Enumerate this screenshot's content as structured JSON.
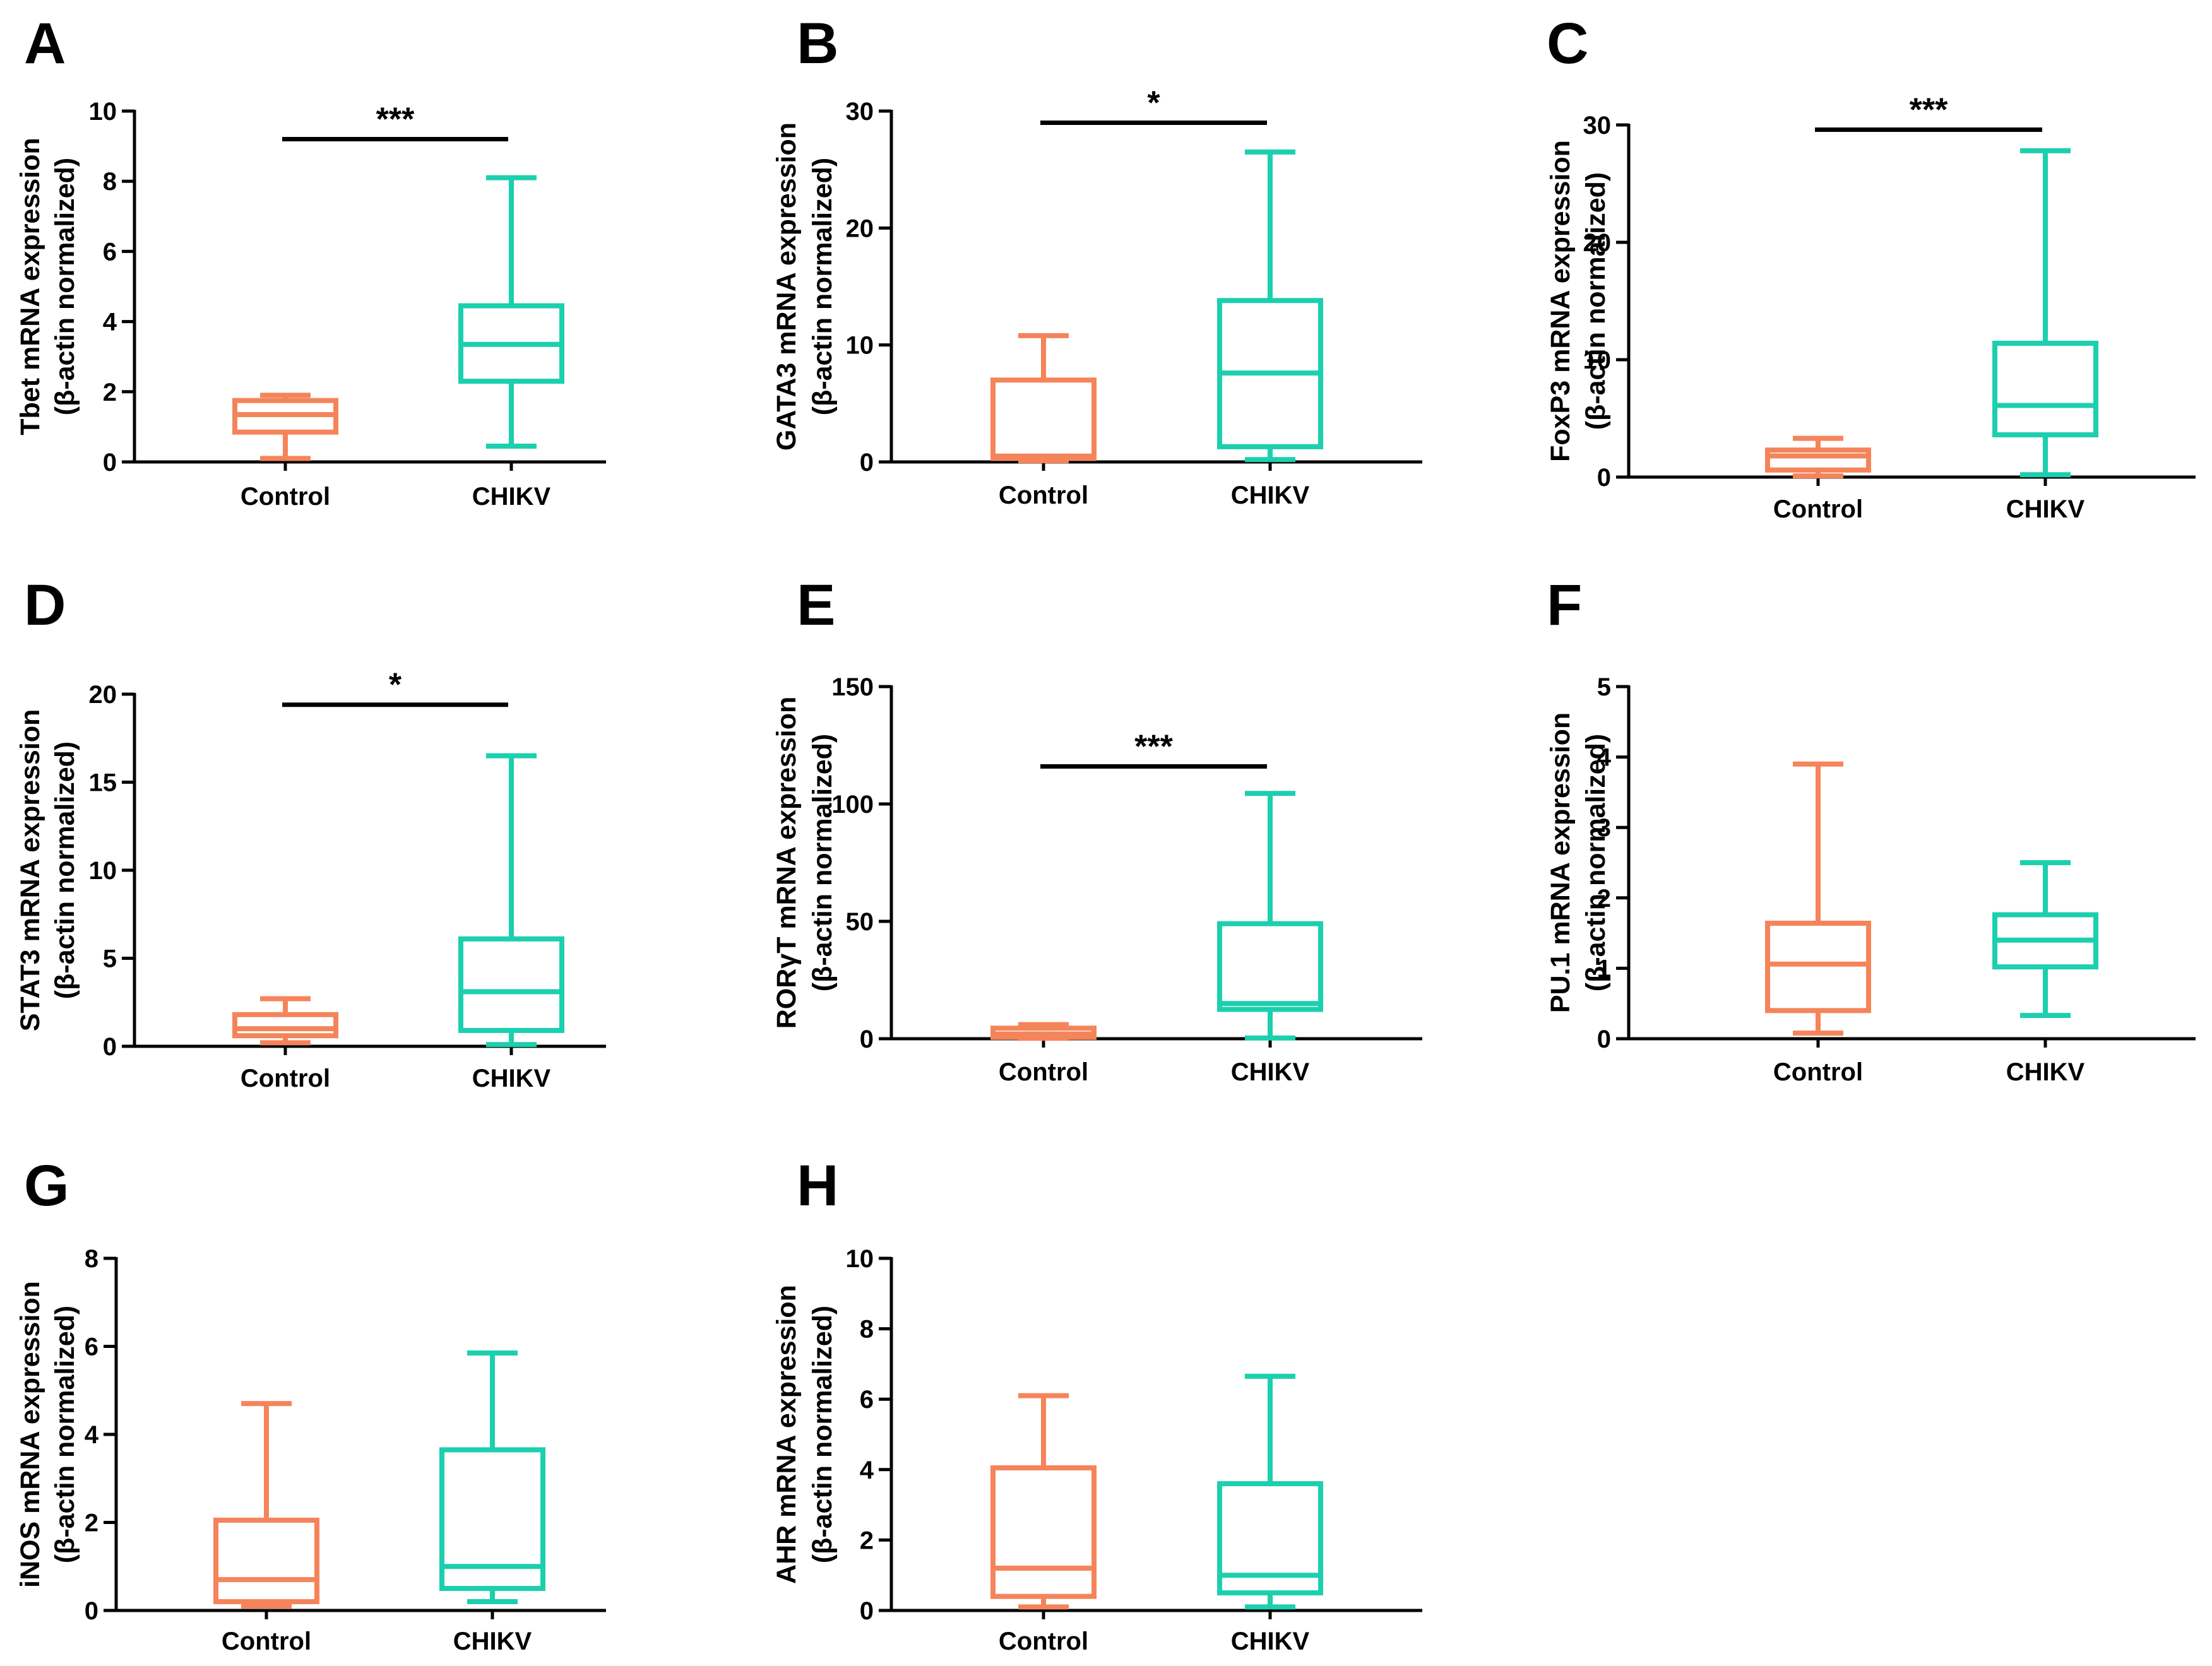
{
  "colors": {
    "control": "#F5845A",
    "chikv": "#1CCFAE",
    "axis": "#000000"
  },
  "chart_data": [
    {
      "type": "box",
      "panel": "A",
      "ylabel": "Tbet mRNA expression",
      "ylabel2": "(β-actin normalized)",
      "ylim": [
        0,
        10
      ],
      "yticks": [
        "0",
        "2",
        "4",
        "6",
        "8",
        "10"
      ],
      "ytick_values": [
        0,
        2,
        4,
        6,
        8,
        10
      ],
      "categories": [
        "Control",
        "CHIKV"
      ],
      "series": [
        {
          "name": "Control",
          "min": 0.1,
          "q1": 0.85,
          "median": 1.35,
          "q3": 1.75,
          "max": 1.9
        },
        {
          "name": "CHIKV",
          "min": 0.45,
          "q1": 2.3,
          "median": 3.35,
          "q3": 4.45,
          "max": 8.1
        }
      ],
      "significance": {
        "label": "***",
        "y": 9.2
      }
    },
    {
      "type": "box",
      "panel": "B",
      "ylabel": "GATA3 mRNA expression",
      "ylabel2": "(β-actin normalized)",
      "ylim": [
        0,
        30
      ],
      "yticks": [
        "0",
        "10",
        "20",
        "30"
      ],
      "ytick_values": [
        0,
        10,
        20,
        30
      ],
      "categories": [
        "Control",
        "CHIKV"
      ],
      "series": [
        {
          "name": "Control",
          "min": 0.1,
          "q1": 0.3,
          "median": 0.5,
          "q3": 7.0,
          "max": 10.8
        },
        {
          "name": "CHIKV",
          "min": 0.2,
          "q1": 1.3,
          "median": 7.6,
          "q3": 13.8,
          "max": 26.5
        }
      ],
      "significance": {
        "label": "*",
        "y": 29.0
      }
    },
    {
      "type": "box",
      "panel": "C",
      "ylabel": "FoxP3 mRNA expression",
      "ylabel2": "(β-actin normalized)",
      "ylim": [
        0,
        30
      ],
      "yticks": [
        "0",
        "10",
        "20",
        "30"
      ],
      "ytick_values": [
        0,
        10,
        20,
        30
      ],
      "categories": [
        "Control",
        "CHIKV"
      ],
      "series": [
        {
          "name": "Control",
          "min": 0.1,
          "q1": 0.6,
          "median": 1.8,
          "q3": 2.3,
          "max": 3.3
        },
        {
          "name": "CHIKV",
          "min": 0.2,
          "q1": 3.6,
          "median": 6.1,
          "q3": 11.4,
          "max": 27.8
        }
      ],
      "significance": {
        "label": "***",
        "y": 29.6
      }
    },
    {
      "type": "box",
      "panel": "D",
      "ylabel": "STAT3 mRNA expression",
      "ylabel2": "(β-actin normalized)",
      "ylim": [
        0,
        20
      ],
      "yticks": [
        "0",
        "5",
        "10",
        "15",
        "20"
      ],
      "ytick_values": [
        0,
        5,
        10,
        15,
        20
      ],
      "categories": [
        "Control",
        "CHIKV"
      ],
      "series": [
        {
          "name": "Control",
          "min": 0.2,
          "q1": 0.6,
          "median": 1.0,
          "q3": 1.8,
          "max": 2.7
        },
        {
          "name": "CHIKV",
          "min": 0.1,
          "q1": 0.9,
          "median": 3.1,
          "q3": 6.1,
          "max": 16.5
        }
      ],
      "significance": {
        "label": "*",
        "y": 19.4
      }
    },
    {
      "type": "box",
      "panel": "E",
      "ylabel": "RORγT mRNA expression",
      "ylabel2": "(β-actin normalized)",
      "ylim": [
        0,
        150
      ],
      "yticks": [
        "0",
        "50",
        "100",
        "150"
      ],
      "ytick_values": [
        0,
        50,
        100,
        150
      ],
      "categories": [
        "Control",
        "CHIKV"
      ],
      "series": [
        {
          "name": "Control",
          "min": 0.2,
          "q1": 0.6,
          "median": 2.0,
          "q3": 4.5,
          "max": 6.0
        },
        {
          "name": "CHIKV",
          "min": 0.3,
          "q1": 12.5,
          "median": 15.0,
          "q3": 49.0,
          "max": 104.5
        }
      ],
      "significance": {
        "label": "***",
        "y": 116.0
      }
    },
    {
      "type": "box",
      "panel": "F",
      "ylabel": "PU.1 mRNA expression",
      "ylabel2": "(β-actin normalized)",
      "ylim": [
        0,
        5
      ],
      "yticks": [
        "0",
        "1",
        "2",
        "3",
        "4",
        "5"
      ],
      "ytick_values": [
        0,
        1,
        2,
        3,
        4,
        5
      ],
      "categories": [
        "Control",
        "CHIKV"
      ],
      "series": [
        {
          "name": "Control",
          "min": 0.08,
          "q1": 0.4,
          "median": 1.06,
          "q3": 1.64,
          "max": 3.9
        },
        {
          "name": "CHIKV",
          "min": 0.33,
          "q1": 1.02,
          "median": 1.4,
          "q3": 1.76,
          "max": 2.5
        }
      ]
    },
    {
      "type": "box",
      "panel": "G",
      "ylabel": "iNOS mRNA expression",
      "ylabel2": "(β-actin normalized)",
      "ylim": [
        0,
        8
      ],
      "yticks": [
        "0",
        "2",
        "4",
        "6",
        "8"
      ],
      "ytick_values": [
        0,
        2,
        4,
        6,
        8
      ],
      "categories": [
        "Control",
        "CHIKV"
      ],
      "series": [
        {
          "name": "Control",
          "min": 0.1,
          "q1": 0.2,
          "median": 0.7,
          "q3": 2.05,
          "max": 4.7
        },
        {
          "name": "CHIKV",
          "min": 0.2,
          "q1": 0.5,
          "median": 1.0,
          "q3": 3.65,
          "max": 5.85
        }
      ]
    },
    {
      "type": "box",
      "panel": "H",
      "ylabel": "AHR mRNA expression",
      "ylabel2": "(β-actin normalized)",
      "ylim": [
        0,
        10
      ],
      "yticks": [
        "0",
        "2",
        "4",
        "6",
        "8",
        "10"
      ],
      "ytick_values": [
        0,
        2,
        4,
        6,
        8,
        10
      ],
      "categories": [
        "Control",
        "CHIKV"
      ],
      "series": [
        {
          "name": "Control",
          "min": 0.1,
          "q1": 0.4,
          "median": 1.2,
          "q3": 4.05,
          "max": 6.1
        },
        {
          "name": "CHIKV",
          "min": 0.1,
          "q1": 0.5,
          "median": 1.0,
          "q3": 3.6,
          "max": 6.65
        }
      ]
    }
  ]
}
